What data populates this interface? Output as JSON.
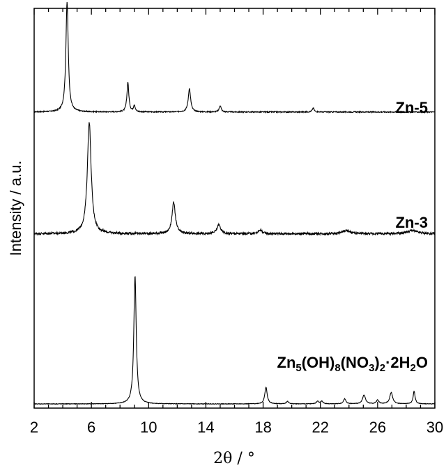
{
  "chart_data": {
    "type": "line",
    "xlabel": "2θ / °",
    "ylabel": "Intensity / a.u.",
    "xlim": [
      2,
      30
    ],
    "xticks": [
      2,
      6,
      10,
      14,
      18,
      22,
      26,
      30
    ],
    "grid": false,
    "legend": "none",
    "y_scale": "stacked offsets, arbitrary units",
    "series": [
      {
        "name": "Zn-5",
        "label_parts": [
          {
            "t": "Zn-5",
            "s": ""
          }
        ],
        "baseline": 0.2,
        "noise": 0.004,
        "peaks": [
          {
            "x": 4.3,
            "height": 0.85,
            "width": 0.1
          },
          {
            "x": 8.55,
            "height": 0.23,
            "width": 0.08
          },
          {
            "x": 9.0,
            "height": 0.05,
            "width": 0.07
          },
          {
            "x": 12.85,
            "height": 0.18,
            "width": 0.1
          },
          {
            "x": 15.0,
            "height": 0.05,
            "width": 0.08
          },
          {
            "x": 21.5,
            "height": 0.03,
            "width": 0.08
          }
        ]
      },
      {
        "name": "Zn-3",
        "label_parts": [
          {
            "t": "Zn-3",
            "s": ""
          }
        ],
        "baseline": 0.26,
        "noise": 0.009,
        "peaks": [
          {
            "x": 5.85,
            "height": 0.86,
            "width": 0.16
          },
          {
            "x": 11.75,
            "height": 0.24,
            "width": 0.14
          },
          {
            "x": 14.9,
            "height": 0.07,
            "width": 0.15
          },
          {
            "x": 17.8,
            "height": 0.03,
            "width": 0.15
          },
          {
            "x": 23.8,
            "height": 0.025,
            "width": 0.3
          },
          {
            "x": 28.4,
            "height": 0.025,
            "width": 0.4
          }
        ]
      },
      {
        "name": "Zn5(OH)8(NO3)2·2H2O",
        "label_parts": [
          {
            "t": "Zn",
            "s": ""
          },
          {
            "t": "5",
            "s": "sub"
          },
          {
            "t": "(OH)",
            "s": ""
          },
          {
            "t": "8",
            "s": "sub"
          },
          {
            "t": "(NO",
            "s": ""
          },
          {
            "t": "3",
            "s": "sub"
          },
          {
            "t": ")",
            "s": ""
          },
          {
            "t": "2",
            "s": "sub"
          },
          {
            "t": "·2H",
            "s": ""
          },
          {
            "t": "2",
            "s": "sub"
          },
          {
            "t": "O",
            "s": ""
          }
        ],
        "baseline": 0.0,
        "noise": 0.002,
        "peaks": [
          {
            "x": 9.05,
            "height": 1.0,
            "width": 0.1
          },
          {
            "x": 18.2,
            "height": 0.13,
            "width": 0.1
          },
          {
            "x": 19.7,
            "height": 0.02,
            "width": 0.1
          },
          {
            "x": 21.8,
            "height": 0.02,
            "width": 0.1
          },
          {
            "x": 22.1,
            "height": 0.02,
            "width": 0.1
          },
          {
            "x": 23.7,
            "height": 0.04,
            "width": 0.1
          },
          {
            "x": 25.05,
            "height": 0.07,
            "width": 0.12
          },
          {
            "x": 26.0,
            "height": 0.03,
            "width": 0.1
          },
          {
            "x": 26.95,
            "height": 0.09,
            "width": 0.12
          },
          {
            "x": 28.55,
            "height": 0.1,
            "width": 0.08
          }
        ]
      }
    ]
  }
}
